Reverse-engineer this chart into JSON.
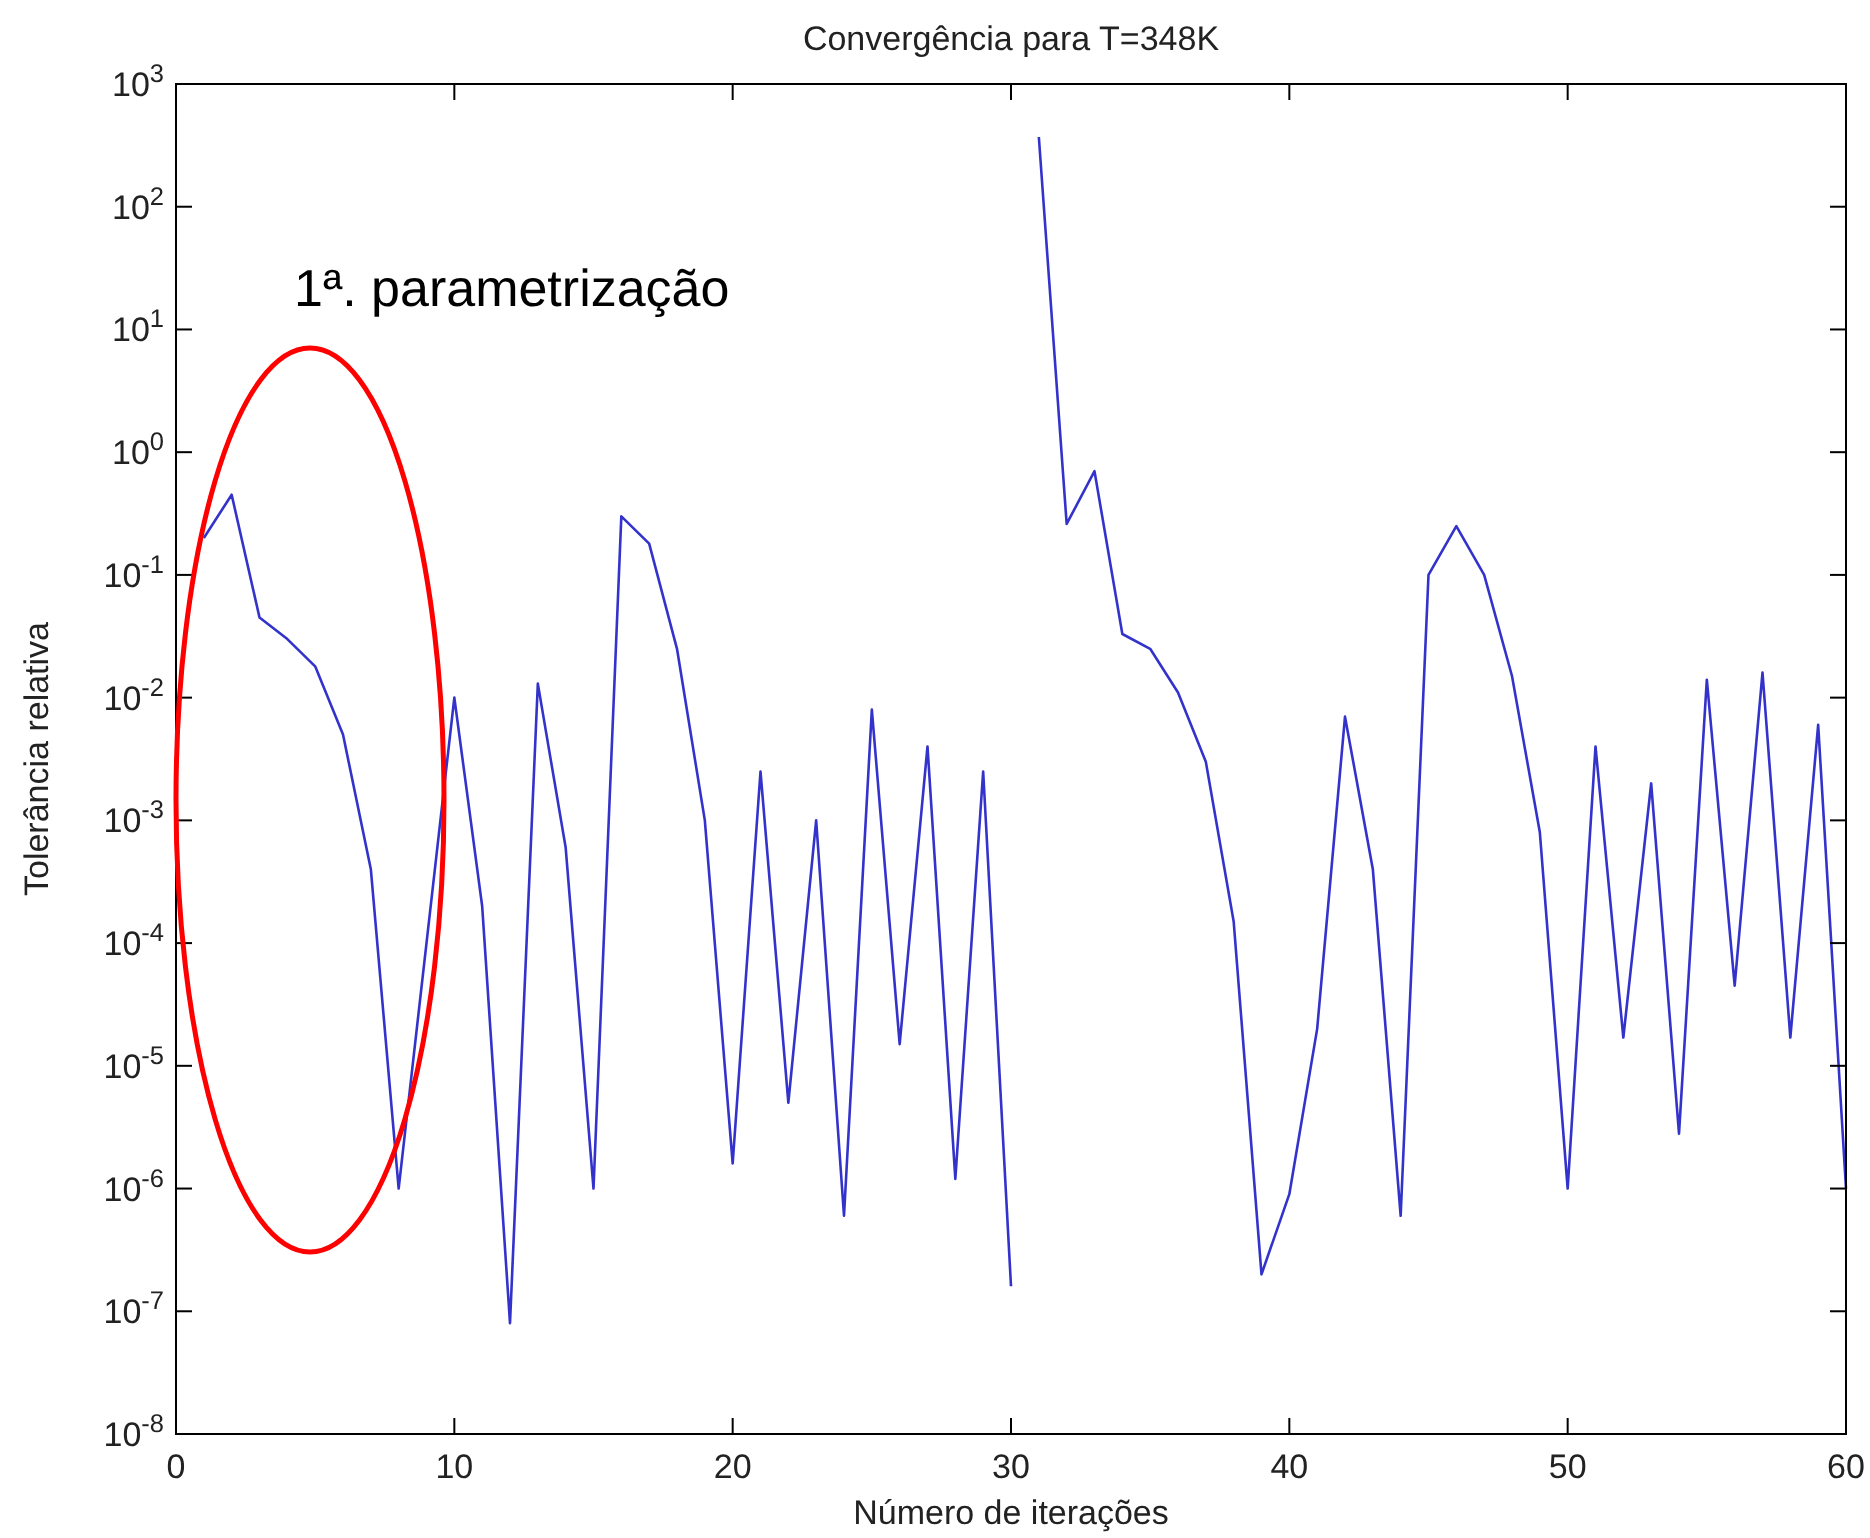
{
  "chart_data": {
    "type": "line",
    "title": "Convergência para T=348K",
    "xlabel": "Número de iterações",
    "ylabel": "Tolerância relativa",
    "annotations": [
      "1ª. parametrização"
    ],
    "log": "y",
    "grid": false,
    "xlim": [
      0,
      60
    ],
    "xticks": [
      0,
      10,
      20,
      30,
      40,
      50,
      60
    ],
    "ylim": [
      1e-08,
      1000
    ],
    "yticks": [
      {
        "value": 1e-08,
        "label": "10$^{-8}$"
      },
      {
        "value": 1e-07,
        "label": "10$^{-7}$"
      },
      {
        "value": 1e-06,
        "label": "10$^{-6}$"
      },
      {
        "value": 1e-05,
        "label": "10$^{-5}$"
      },
      {
        "value": 0.0001,
        "label": "10$^{-4}$"
      },
      {
        "value": 0.001,
        "label": "10$^{-3}$"
      },
      {
        "value": 0.01,
        "label": "10$^{-2}$"
      },
      {
        "value": 0.1,
        "label": "10$^{-1}$"
      },
      {
        "value": 1,
        "label": "10$^{0}$"
      },
      {
        "value": 10,
        "label": "10$^{1}$"
      },
      {
        "value": 100,
        "label": "10$^{2}$"
      },
      {
        "value": 1000,
        "label": "10$^{3}$"
      }
    ],
    "series": [
      {
        "color": "#3333cc",
        "x": [
          1,
          2,
          3,
          4,
          5,
          6,
          7,
          8,
          9,
          10,
          11,
          12,
          13,
          14,
          15,
          16,
          17,
          18,
          19,
          20,
          21,
          22,
          23,
          24,
          25,
          26,
          27,
          28,
          29,
          30
        ],
        "values": [
          0.2,
          0.45,
          0.045,
          0.03,
          0.018,
          0.005,
          0.0004,
          1e-06,
          0.0001,
          0.01,
          0.0002,
          8e-08,
          0.013,
          0.0006,
          1e-06,
          0.3,
          0.18,
          0.025,
          0.001,
          1.6e-06,
          0.0025,
          5e-06,
          0.001,
          6e-07,
          0.008,
          1.5e-05,
          0.004,
          1.2e-06,
          0.0025,
          1.6e-07
        ]
      },
      {
        "color": "#3333cc",
        "x": [
          31,
          32,
          33,
          34,
          35,
          36,
          37,
          38,
          39,
          40,
          41,
          42,
          43,
          44,
          45,
          46,
          47,
          48,
          49,
          50,
          51,
          52,
          53,
          54,
          55,
          56,
          57,
          58,
          59,
          60
        ],
        "values": [
          370,
          0.26,
          0.7,
          0.033,
          0.025,
          0.011,
          0.003,
          0.00015,
          2e-07,
          9e-07,
          2e-05,
          0.007,
          0.0004,
          6e-07,
          0.1,
          0.25,
          0.1,
          0.015,
          0.0008,
          1e-06,
          0.004,
          1.7e-05,
          0.002,
          2.8e-06,
          0.014,
          4.5e-05,
          0.016,
          1.7e-05,
          0.006,
          1e-06
        ]
      }
    ]
  }
}
